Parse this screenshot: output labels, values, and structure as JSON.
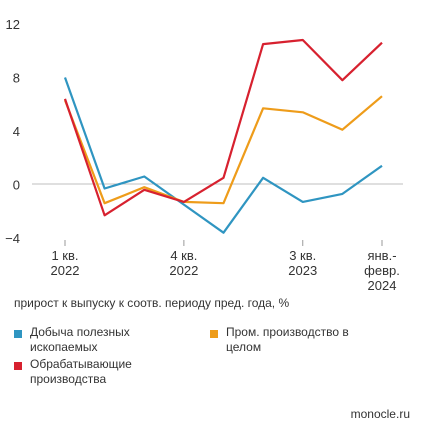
{
  "chart_data": {
    "type": "line",
    "x_labels": [
      "1 кв.\n2022",
      "",
      "",
      "4 кв.\n2022",
      "",
      "",
      "3 кв.\n2023",
      "",
      "янв.-\nфевр.\n2024"
    ],
    "categories_count": 9,
    "yticks": [
      12,
      8,
      4,
      0,
      -4
    ],
    "ylim": [
      -4,
      12
    ],
    "grid": false,
    "series": [
      {
        "name": "Добыча полезных ископаемых",
        "color": "#2f95c1",
        "values": [
          8.0,
          -0.3,
          0.6,
          -1.5,
          -3.6,
          0.5,
          -1.3,
          -0.7,
          1.4
        ]
      },
      {
        "name": "Пром. производство в целом",
        "color": "#ee9c1a",
        "values": [
          6.3,
          -1.4,
          -0.2,
          -1.3,
          -1.4,
          5.7,
          5.4,
          4.1,
          6.6
        ]
      },
      {
        "name": "Обрабатывающие производства",
        "color": "#d7212f",
        "values": [
          6.4,
          -2.3,
          -0.4,
          -1.3,
          0.5,
          10.5,
          10.8,
          7.8,
          10.6
        ]
      }
    ],
    "caption": "прирост к выпуску к соотв. периоду пред. года, %"
  },
  "legend": [
    {
      "label": "Добыча полезных ископаемых",
      "color": "#2f95c1"
    },
    {
      "label": "Пром. производство в целом",
      "color": "#ee9c1a"
    },
    {
      "label": "Обрабатывающие производства",
      "color": "#d7212f"
    }
  ],
  "source": "monocle.ru"
}
